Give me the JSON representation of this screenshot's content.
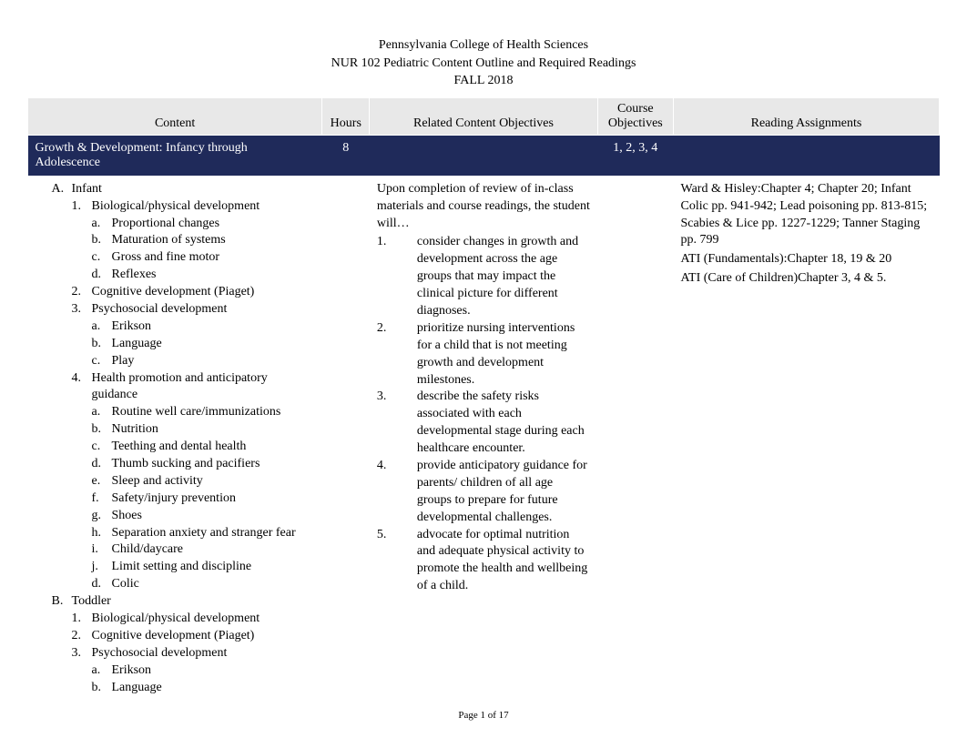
{
  "header": {
    "institution": "Pennsylvania College of Health Sciences",
    "course": "NUR 102 Pediatric Content Outline and Required Readings",
    "term": "FALL 2018"
  },
  "columns": {
    "content": "Content",
    "hours": "Hours",
    "related": "Related Content Objectives",
    "course_obj": "Course Objectives",
    "readings": "Reading Assignments"
  },
  "section": {
    "title": "Growth & Development: Infancy through Adolescence",
    "hours": "8",
    "course_obj": "1, 2, 3, 4"
  },
  "content_outline": {
    "A": {
      "label": "A.",
      "text": "Infant",
      "items": [
        {
          "n": "1.",
          "text": "Biological/physical development",
          "sub": [
            {
              "m": "a.",
              "text": "Proportional changes"
            },
            {
              "m": "b.",
              "text": "Maturation of systems"
            },
            {
              "m": "c.",
              "text": "Gross and fine motor"
            },
            {
              "m": "d.",
              "text": "Reflexes"
            }
          ]
        },
        {
          "n": "2.",
          "text": "Cognitive development (Piaget)"
        },
        {
          "n": "3.",
          "text": "Psychosocial development",
          "sub": [
            {
              "m": "a.",
              "text": "Erikson"
            },
            {
              "m": "b.",
              "text": "Language"
            },
            {
              "m": "c.",
              "text": "Play"
            }
          ]
        },
        {
          "n": "4.",
          "text": "Health promotion and anticipatory guidance",
          "sub": [
            {
              "m": "a.",
              "text": "Routine well care/immunizations"
            },
            {
              "m": "b.",
              "text": "Nutrition"
            },
            {
              "m": "c.",
              "text": "Teething and dental health"
            },
            {
              "m": "d.",
              "text": "Thumb sucking and pacifiers"
            },
            {
              "m": "e.",
              "text": "Sleep and activity"
            },
            {
              "m": "f.",
              "text": "Safety/injury prevention"
            },
            {
              "m": "g.",
              "text": "Shoes"
            },
            {
              "m": "h.",
              "text": "Separation anxiety and stranger fear"
            },
            {
              "m": "i.",
              "text": "Child/daycare"
            },
            {
              "m": "j.",
              "text": "Limit setting and discipline"
            },
            {
              "m": "d.",
              "text": "Colic"
            }
          ]
        }
      ]
    },
    "B": {
      "label": "B.",
      "text": "Toddler",
      "items": [
        {
          "n": "1.",
          "text": "Biological/physical development"
        },
        {
          "n": "2.",
          "text": "Cognitive development (Piaget)"
        },
        {
          "n": "3.",
          "text": "Psychosocial development",
          "sub": [
            {
              "m": "a.",
              "text": "Erikson"
            },
            {
              "m": "b.",
              "text": "Language"
            }
          ]
        }
      ]
    }
  },
  "objectives": {
    "intro": "Upon completion of review of in-class materials and course readings, the student will…",
    "list": [
      {
        "n": "1.",
        "text": "consider changes in growth and development across the age groups that may impact the clinical picture for different diagnoses."
      },
      {
        "n": "2.",
        "text": "prioritize nursing interventions for a child that is not meeting growth and development milestones."
      },
      {
        "n": "3.",
        "text": "describe the safety risks associated with each developmental stage during each healthcare encounter."
      },
      {
        "n": "4.",
        "text": "provide anticipatory guidance for parents/ children of all age groups to prepare for future developmental challenges."
      },
      {
        "n": "5.",
        "text": "advocate for optimal nutrition and adequate physical activity to promote the health and wellbeing of a child."
      }
    ]
  },
  "readings": {
    "p1": "Ward & Hisley:Chapter 4; Chapter 20; Infant Colic pp. 941-942; Lead poisoning pp. 813-815; Scabies & Lice pp. 1227-1229; Tanner Staging pp. 799",
    "p2": "ATI (Fundamentals):Chapter 18, 19 & 20",
    "p3": "ATI (Care of Children)Chapter 3, 4 & 5."
  },
  "footer": "Page 1 of 17",
  "style": {
    "section_bg": "#1f2a5a",
    "section_fg": "#ffffff",
    "header_bg": "#e8e8e8"
  }
}
